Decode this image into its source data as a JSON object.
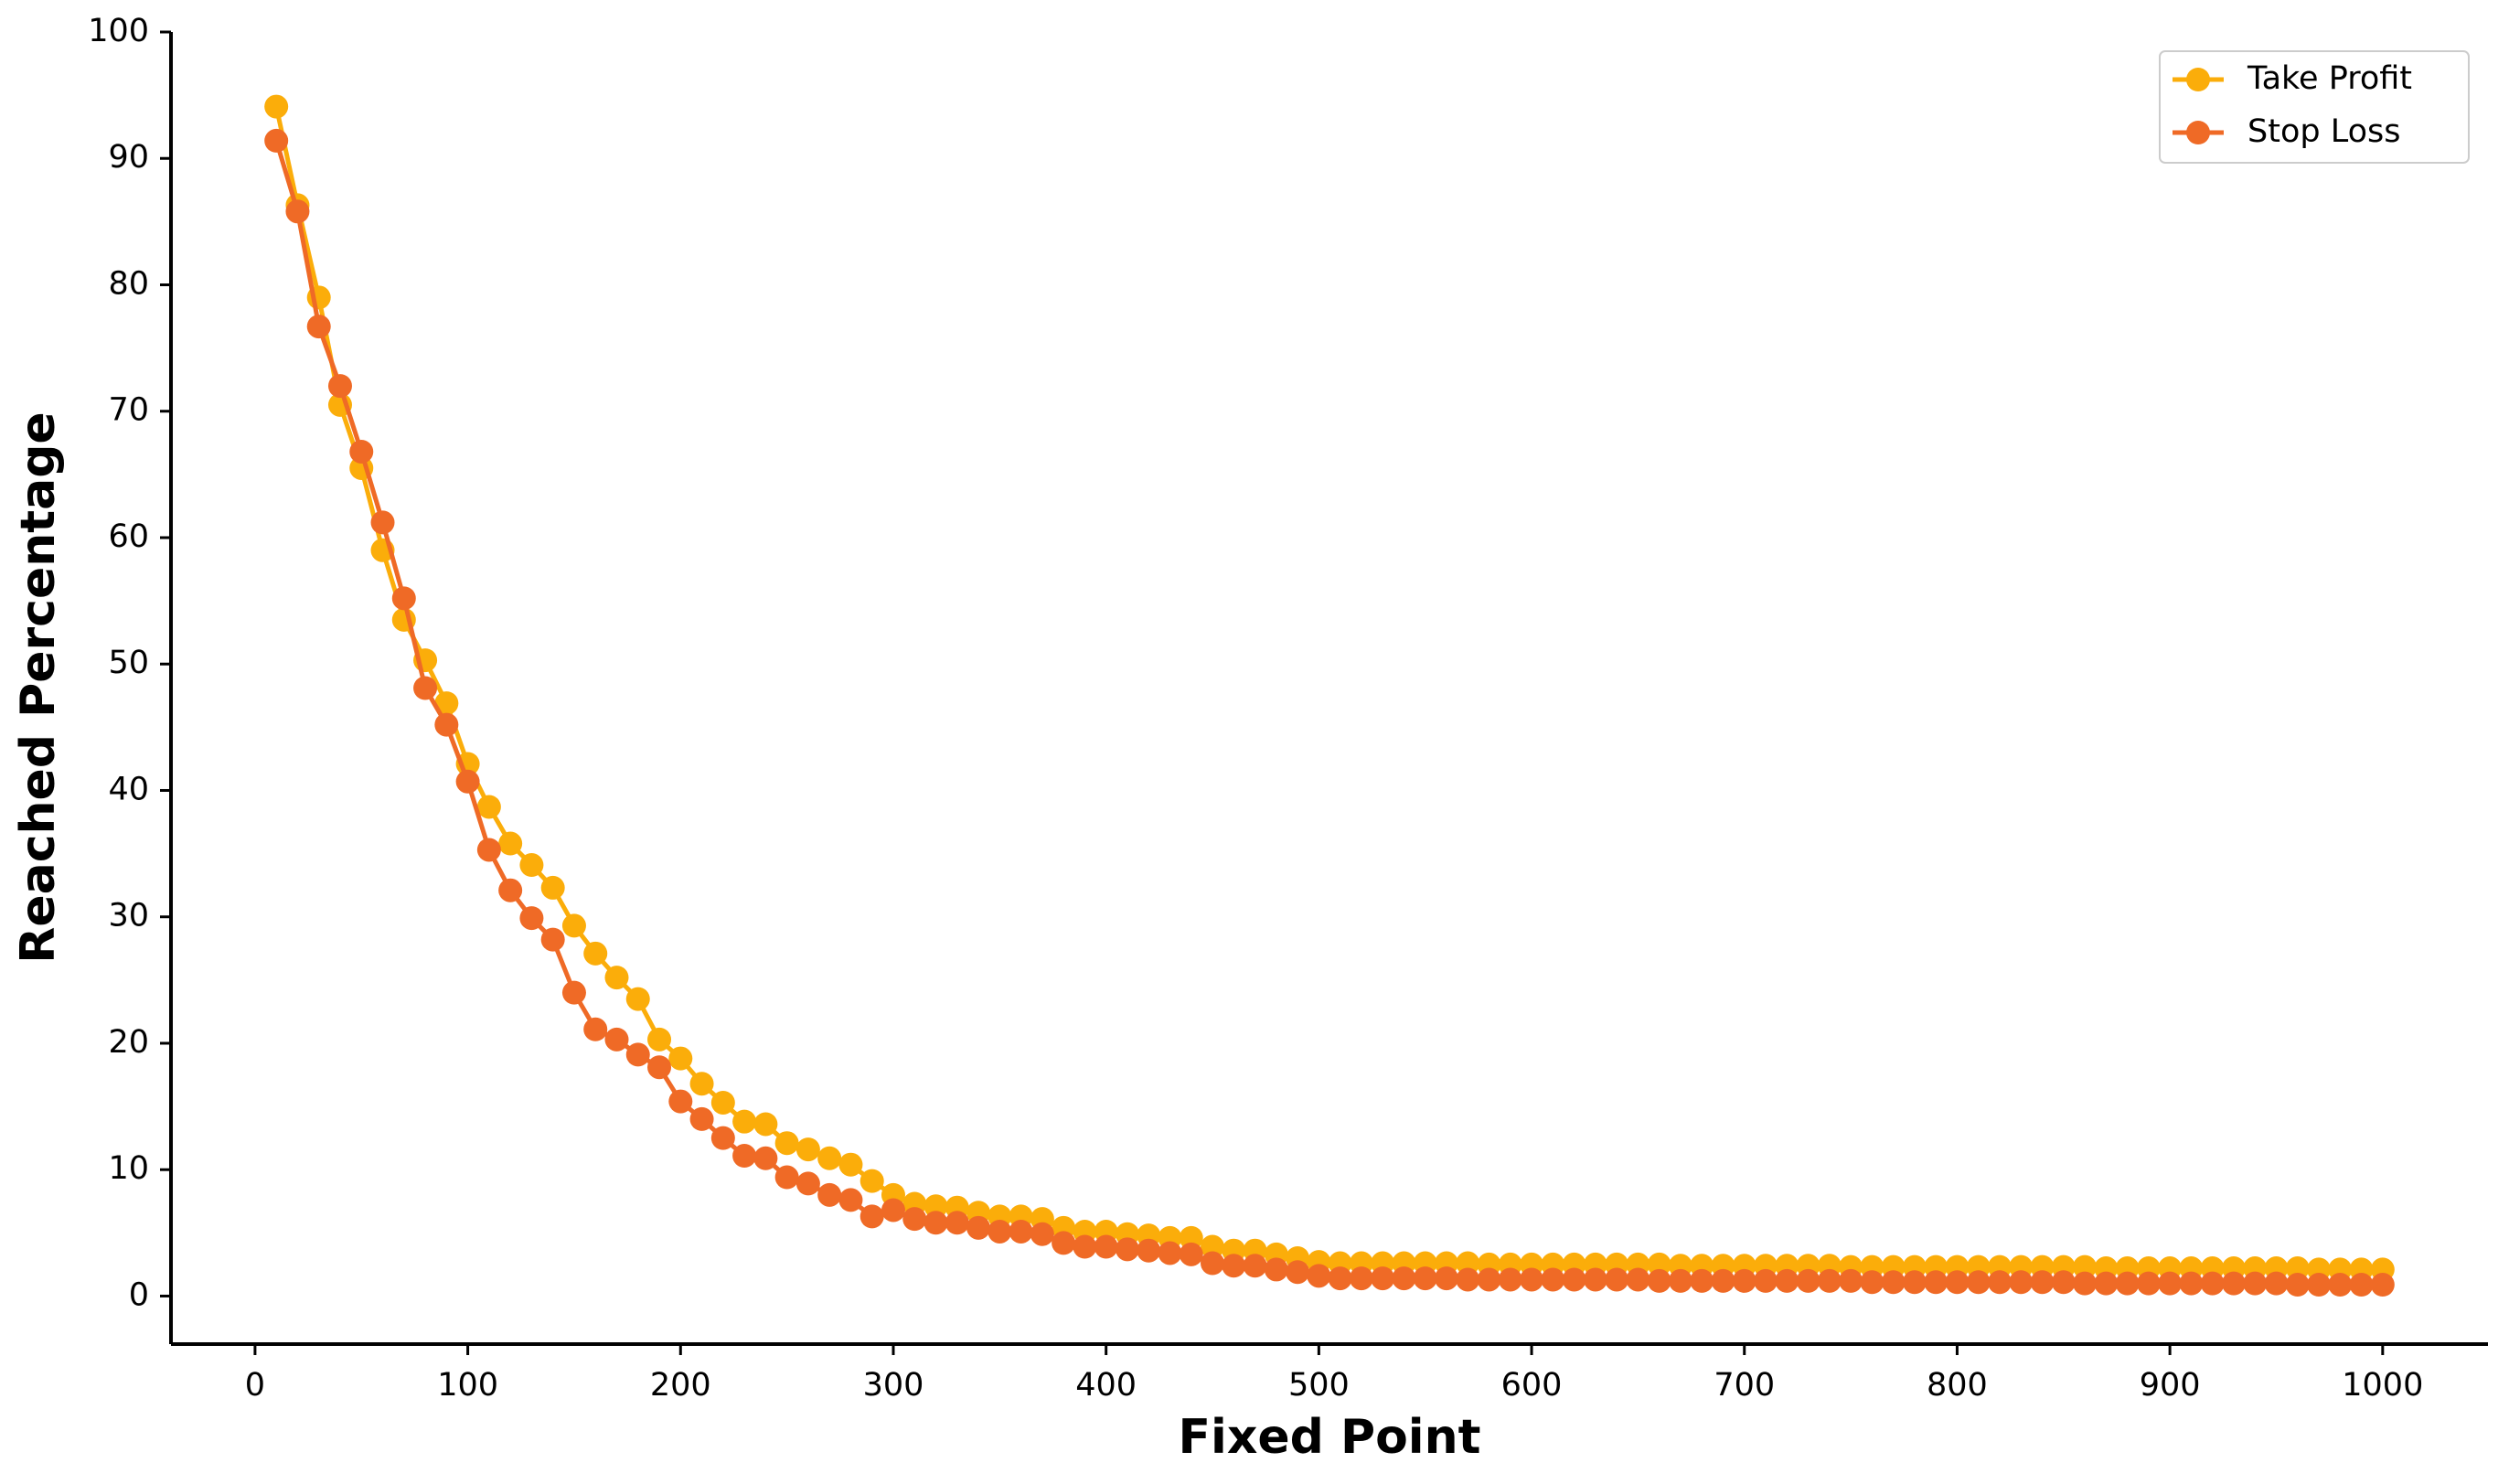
{
  "chart_data": {
    "type": "line",
    "x_label": "Fixed Point",
    "y_label": "Reached Percentage",
    "x": [
      10,
      20,
      30,
      40,
      50,
      60,
      70,
      80,
      90,
      100,
      110,
      120,
      130,
      140,
      150,
      160,
      170,
      180,
      190,
      200,
      210,
      220,
      230,
      240,
      250,
      260,
      270,
      280,
      290,
      300,
      310,
      320,
      330,
      340,
      350,
      360,
      370,
      380,
      390,
      400,
      410,
      420,
      430,
      440,
      450,
      460,
      470,
      480,
      490,
      500,
      510,
      520,
      530,
      540,
      550,
      560,
      570,
      580,
      590,
      600,
      610,
      620,
      630,
      640,
      650,
      660,
      670,
      680,
      690,
      700,
      710,
      720,
      730,
      740,
      750,
      760,
      770,
      780,
      790,
      800,
      810,
      820,
      830,
      840,
      850,
      860,
      870,
      880,
      890,
      900,
      910,
      920,
      930,
      940,
      950,
      960,
      970,
      980,
      990,
      1000
    ],
    "series": [
      {
        "name": "Take Profit",
        "color": "#fbad0a",
        "values": [
          94.1,
          86.3,
          79,
          70.5,
          65.5,
          59,
          53.5,
          50.3,
          46.9,
          42.1,
          38.7,
          35.8,
          34.1,
          32.3,
          29.3,
          27.1,
          25.2,
          23.5,
          20.3,
          18.8,
          16.8,
          15.3,
          13.8,
          13.6,
          12.1,
          11.6,
          10.9,
          10.4,
          9.1,
          8.0,
          7.3,
          7.1,
          7.0,
          6.6,
          6.3,
          6.3,
          6.1,
          5.4,
          5.1,
          5.1,
          4.9,
          4.8,
          4.6,
          4.6,
          3.9,
          3.6,
          3.6,
          3.3,
          3.0,
          2.7,
          2.6,
          2.6,
          2.6,
          2.6,
          2.6,
          2.6,
          2.6,
          2.5,
          2.5,
          2.5,
          2.5,
          2.5,
          2.5,
          2.5,
          2.5,
          2.5,
          2.4,
          2.4,
          2.4,
          2.4,
          2.4,
          2.4,
          2.4,
          2.4,
          2.3,
          2.3,
          2.3,
          2.3,
          2.3,
          2.3,
          2.3,
          2.3,
          2.3,
          2.3,
          2.3,
          2.3,
          2.2,
          2.2,
          2.2,
          2.2,
          2.2,
          2.2,
          2.2,
          2.2,
          2.2,
          2.2,
          2.1,
          2.1,
          2.1,
          2.1
        ]
      },
      {
        "name": "Stop Loss",
        "color": "#ef6a26",
        "values": [
          91.4,
          85.8,
          76.7,
          72.0,
          66.8,
          61.2,
          55.2,
          48.1,
          45.2,
          40.7,
          35.3,
          32.1,
          29.9,
          28.2,
          24.0,
          21.1,
          20.3,
          19.1,
          18.1,
          15.4,
          14.0,
          12.5,
          11.1,
          10.9,
          9.4,
          8.9,
          8.0,
          7.6,
          6.3,
          6.8,
          6.1,
          5.8,
          5.8,
          5.4,
          5.1,
          5.1,
          4.9,
          4.2,
          3.9,
          3.9,
          3.7,
          3.6,
          3.4,
          3.3,
          2.6,
          2.4,
          2.4,
          2.1,
          1.9,
          1.6,
          1.4,
          1.4,
          1.4,
          1.4,
          1.4,
          1.4,
          1.3,
          1.3,
          1.3,
          1.3,
          1.3,
          1.3,
          1.3,
          1.3,
          1.3,
          1.2,
          1.2,
          1.2,
          1.2,
          1.2,
          1.2,
          1.2,
          1.2,
          1.2,
          1.2,
          1.1,
          1.1,
          1.1,
          1.1,
          1.1,
          1.1,
          1.1,
          1.1,
          1.1,
          1.1,
          1.0,
          1.0,
          1.0,
          1.0,
          1.0,
          1.0,
          1.0,
          1.0,
          1.0,
          1.0,
          0.9,
          0.9,
          0.9,
          0.9,
          0.9
        ]
      }
    ],
    "xlim": [
      -39.5,
      1049.5
    ],
    "ylim": [
      -3.8,
      100
    ],
    "xticks": [
      0,
      100,
      200,
      300,
      400,
      500,
      600,
      700,
      800,
      900,
      1000
    ],
    "yticks": [
      0,
      10,
      20,
      30,
      40,
      50,
      60,
      70,
      80,
      90,
      100
    ],
    "legend": "upper right"
  }
}
